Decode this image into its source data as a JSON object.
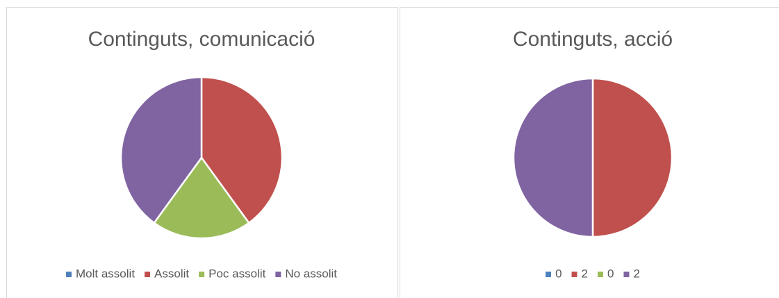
{
  "chart_data": [
    {
      "type": "pie",
      "title": "Continguts, comunicació",
      "categories": [
        "Molt assolit",
        "Assolit",
        "Poc assolit",
        "No assolit"
      ],
      "values": [
        0,
        2,
        1,
        2
      ],
      "colors": [
        "#4f81bd",
        "#c0504d",
        "#9bbb59",
        "#8064a2"
      ],
      "legend": "bottom"
    },
    {
      "type": "pie",
      "title": "Continguts, acció",
      "categories": [
        "0",
        "2",
        "0",
        "2"
      ],
      "values": [
        0,
        2,
        0,
        2
      ],
      "colors": [
        "#4f81bd",
        "#c0504d",
        "#9bbb59",
        "#8064a2"
      ],
      "legend": "bottom"
    }
  ]
}
